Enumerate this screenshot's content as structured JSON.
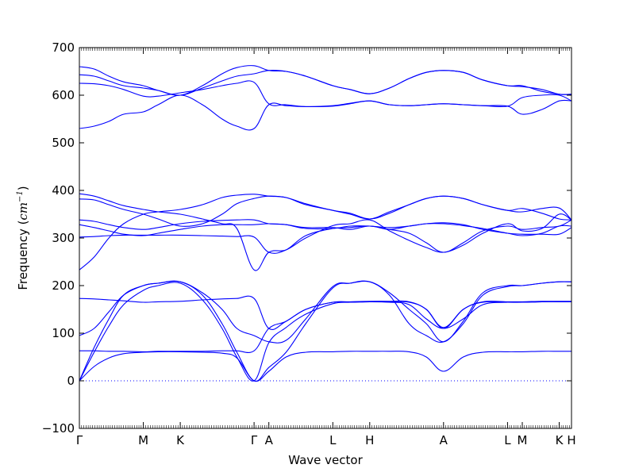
{
  "chart_data": {
    "type": "line",
    "xlabel": "Wave vector",
    "ylabel_text": "Frequency (",
    "ylabel_unit": "cm",
    "ylabel_exp": "−1",
    "ylabel_close": ")",
    "ylim": [
      -100,
      700
    ],
    "yticks": [
      -100,
      0,
      100,
      200,
      300,
      400,
      500,
      600,
      700
    ],
    "xlim": [
      0,
      10
    ],
    "kpoints": [
      {
        "label": "Γ",
        "x": 0
      },
      {
        "label": "M",
        "x": 1.3
      },
      {
        "label": "K",
        "x": 2.05
      },
      {
        "label": "Γ",
        "x": 3.55
      },
      {
        "label": "A",
        "x": 3.85
      },
      {
        "label": "L",
        "x": 5.15
      },
      {
        "label": "H",
        "x": 5.9
      },
      {
        "label": "A",
        "x": 7.4
      },
      {
        "label": "L",
        "x": 8.7
      },
      {
        "label": "M",
        "x": 9.0
      },
      {
        "label": "K",
        "x": 9.75
      },
      {
        "label": "H",
        "x": 10
      }
    ],
    "zero_line": true,
    "line_color": "#0000ff",
    "series": [
      {
        "x": [
          0,
          0.3,
          0.6,
          0.9,
          1.3,
          1.6,
          2.05,
          2.5,
          2.9,
          3.2,
          3.55,
          3.85,
          4.2,
          4.6,
          5.15,
          5.5,
          5.9,
          6.3,
          6.7,
          7.05,
          7.4,
          7.8,
          8.2,
          8.7,
          9.0,
          9.4,
          9.75,
          10
        ],
        "y": [
          0,
          30,
          48,
          57,
          60,
          61,
          61,
          60,
          58,
          48,
          0,
          20,
          50,
          60,
          61,
          62,
          62,
          62,
          61,
          50,
          20,
          50,
          60,
          61,
          61,
          62,
          62,
          62
        ]
      },
      {
        "x": [
          0,
          0.3,
          0.6,
          0.9,
          1.3,
          1.6,
          2.05,
          2.5,
          2.9,
          3.2,
          3.55,
          3.85,
          4.2,
          4.6,
          5.15,
          5.5,
          5.9,
          6.3,
          6.7,
          7.05,
          7.4,
          7.8,
          8.2,
          8.7,
          9.0,
          9.4,
          9.75,
          10
        ],
        "y": [
          0,
          70,
          130,
          180,
          200,
          205,
          208,
          180,
          120,
          60,
          0,
          28,
          60,
          120,
          195,
          205,
          208,
          180,
          120,
          95,
          82,
          120,
          180,
          198,
          200,
          205,
          208,
          208
        ]
      },
      {
        "x": [
          0,
          0.3,
          0.6,
          0.9,
          1.3,
          1.6,
          2.05,
          2.5,
          2.9,
          3.2,
          3.55,
          3.85,
          4.2,
          4.6,
          5.15,
          5.5,
          5.9,
          6.3,
          6.7,
          7.05,
          7.4,
          7.8,
          8.2,
          8.7,
          9.0,
          9.4,
          9.75,
          10
        ],
        "y": [
          0,
          60,
          115,
          160,
          190,
          200,
          205,
          170,
          110,
          50,
          0,
          80,
          112,
          140,
          162,
          165,
          166,
          165,
          160,
          130,
          110,
          130,
          160,
          165,
          165,
          166,
          166,
          166
        ]
      },
      {
        "x": [
          0,
          0.3,
          0.6,
          0.9,
          1.3,
          1.6,
          2.05,
          2.5,
          2.9,
          3.2,
          3.55,
          3.85,
          4.2,
          4.6,
          5.15,
          5.5,
          5.9,
          6.3,
          6.7,
          7.05,
          7.4,
          7.8,
          8.2,
          8.7,
          9.0,
          9.4,
          9.75,
          10
        ],
        "y": [
          63,
          63,
          62,
          62,
          61,
          62,
          62,
          62,
          63,
          63,
          63,
          110,
          125,
          150,
          165,
          165,
          166,
          166,
          165,
          150,
          110,
          150,
          165,
          165,
          165,
          166,
          166,
          166
        ]
      },
      {
        "x": [
          0,
          0.3,
          0.6,
          0.9,
          1.3,
          1.6,
          2.05,
          2.5,
          2.9,
          3.2,
          3.55,
          3.85,
          4.2,
          4.6,
          5.15,
          5.5,
          5.9,
          6.3,
          6.7,
          7.05,
          7.4,
          7.8,
          8.2,
          8.7,
          9.0,
          9.4,
          9.75,
          10
        ],
        "y": [
          95,
          110,
          145,
          180,
          200,
          205,
          208,
          185,
          150,
          110,
          95,
          82,
          85,
          130,
          198,
          205,
          208,
          185,
          150,
          120,
          82,
          125,
          185,
          200,
          200,
          205,
          208,
          208
        ]
      },
      {
        "x": [
          0,
          0.3,
          0.6,
          0.9,
          1.3,
          1.6,
          2.05,
          2.5,
          2.9,
          3.2,
          3.55,
          3.85,
          4.2,
          4.6,
          5.15,
          5.5,
          5.9,
          6.3,
          6.7,
          7.05,
          7.4,
          7.8,
          8.2,
          8.7,
          9.0,
          9.4,
          9.75,
          10
        ],
        "y": [
          173,
          172,
          170,
          168,
          165,
          166,
          167,
          170,
          172,
          173,
          173,
          110,
          125,
          150,
          165,
          166,
          167,
          167,
          166,
          150,
          112,
          150,
          166,
          166,
          166,
          167,
          167,
          167
        ]
      },
      {
        "x": [
          0,
          0.3,
          0.6,
          0.9,
          1.3,
          1.6,
          2.05,
          2.5,
          2.9,
          3.2,
          3.55,
          3.85,
          4.2,
          4.6,
          5.15,
          5.5,
          5.9,
          6.3,
          6.7,
          7.05,
          7.4,
          7.8,
          8.2,
          8.7,
          9.0,
          9.4,
          9.75,
          10
        ],
        "y": [
          233,
          260,
          300,
          330,
          350,
          355,
          360,
          370,
          385,
          390,
          392,
          388,
          385,
          370,
          358,
          350,
          340,
          355,
          370,
          383,
          388,
          383,
          370,
          358,
          355,
          362,
          363,
          338
        ]
      },
      {
        "x": [
          0,
          0.3,
          0.6,
          0.9,
          1.3,
          1.6,
          2.05,
          2.5,
          2.9,
          3.2,
          3.55,
          3.85,
          4.2,
          4.6,
          5.15,
          5.5,
          5.9,
          6.3,
          6.7,
          7.05,
          7.4,
          7.8,
          8.2,
          8.7,
          9.0,
          9.4,
          9.75,
          10
        ],
        "y": [
          393,
          388,
          378,
          368,
          360,
          355,
          350,
          340,
          330,
          320,
          233,
          270,
          275,
          300,
          326,
          330,
          338,
          315,
          295,
          280,
          270,
          285,
          310,
          330,
          315,
          320,
          350,
          338
        ]
      },
      {
        "x": [
          0,
          0.3,
          0.6,
          0.9,
          1.3,
          1.6,
          2.05,
          2.5,
          2.9,
          3.2,
          3.55,
          3.85,
          4.2,
          4.6,
          5.15,
          5.5,
          5.9,
          6.3,
          6.7,
          7.05,
          7.4,
          7.8,
          8.2,
          8.7,
          9.0,
          9.4,
          9.75,
          10
        ],
        "y": [
          382,
          380,
          370,
          360,
          350,
          340,
          325,
          330,
          350,
          372,
          383,
          388,
          385,
          372,
          358,
          352,
          340,
          352,
          370,
          383,
          388,
          383,
          370,
          358,
          362,
          352,
          340,
          338
        ]
      },
      {
        "x": [
          0,
          0.3,
          0.6,
          0.9,
          1.3,
          1.6,
          2.05,
          2.5,
          2.9,
          3.2,
          3.55,
          3.85,
          4.2,
          4.6,
          5.15,
          5.5,
          5.9,
          6.3,
          6.7,
          7.05,
          7.4,
          7.8,
          8.2,
          8.7,
          9.0,
          9.4,
          9.75,
          10
        ],
        "y": [
          338,
          335,
          328,
          322,
          318,
          322,
          330,
          335,
          337,
          338,
          338,
          330,
          328,
          320,
          320,
          325,
          325,
          322,
          325,
          330,
          330,
          326,
          320,
          310,
          305,
          310,
          325,
          325
        ]
      },
      {
        "x": [
          0,
          0.3,
          0.6,
          0.9,
          1.3,
          1.6,
          2.05,
          2.5,
          2.9,
          3.2,
          3.55,
          3.85,
          4.2,
          4.6,
          5.15,
          5.5,
          5.9,
          6.3,
          6.7,
          7.05,
          7.4,
          7.8,
          8.2,
          8.7,
          9.0,
          9.4,
          9.75,
          10
        ],
        "y": [
          328,
          322,
          315,
          308,
          305,
          310,
          318,
          325,
          328,
          328,
          328,
          330,
          328,
          322,
          322,
          318,
          325,
          318,
          325,
          330,
          332,
          328,
          318,
          310,
          308,
          308,
          308,
          322
        ]
      },
      {
        "x": [
          0,
          0.3,
          0.6,
          0.9,
          1.3,
          1.6,
          2.05,
          2.5,
          2.9,
          3.2,
          3.55,
          3.85,
          4.2,
          4.6,
          5.15,
          5.5,
          5.9,
          6.3,
          6.7,
          7.05,
          7.4,
          7.8,
          8.2,
          8.7,
          9.0,
          9.4,
          9.75,
          10
        ],
        "y": [
          302,
          303,
          305,
          306,
          306,
          306,
          306,
          305,
          304,
          303,
          302,
          270,
          275,
          305,
          320,
          322,
          325,
          318,
          310,
          290,
          270,
          290,
          315,
          325,
          318,
          322,
          325,
          338
        ]
      },
      {
        "x": [
          0,
          0.3,
          0.6,
          0.9,
          1.3,
          1.6,
          2.05,
          2.5,
          2.9,
          3.2,
          3.55,
          3.85,
          4.2,
          4.6,
          5.15,
          5.5,
          5.9,
          6.3,
          6.7,
          7.05,
          7.4,
          7.8,
          8.2,
          8.7,
          9.0,
          9.4,
          9.75,
          10
        ],
        "y": [
          530,
          535,
          545,
          560,
          565,
          580,
          600,
          580,
          550,
          535,
          530,
          580,
          578,
          576,
          577,
          582,
          588,
          580,
          578,
          580,
          582,
          580,
          578,
          577,
          560,
          570,
          588,
          588
        ]
      },
      {
        "x": [
          0,
          0.3,
          0.6,
          0.9,
          1.3,
          1.6,
          2.05,
          2.5,
          2.9,
          3.2,
          3.55,
          3.85,
          4.2,
          4.6,
          5.15,
          5.5,
          5.9,
          6.3,
          6.7,
          7.05,
          7.4,
          7.8,
          8.2,
          8.7,
          9.0,
          9.4,
          9.75,
          10
        ],
        "y": [
          625,
          624,
          620,
          612,
          598,
          598,
          605,
          612,
          620,
          625,
          627,
          582,
          580,
          576,
          578,
          583,
          588,
          580,
          578,
          580,
          582,
          580,
          578,
          577,
          595,
          600,
          600,
          588
        ]
      },
      {
        "x": [
          0,
          0.3,
          0.6,
          0.9,
          1.3,
          1.6,
          2.05,
          2.5,
          2.9,
          3.2,
          3.55,
          3.85,
          4.2,
          4.6,
          5.15,
          5.5,
          5.9,
          6.3,
          6.7,
          7.05,
          7.4,
          7.8,
          8.2,
          8.7,
          9.0,
          9.4,
          9.75,
          10
        ],
        "y": [
          643,
          640,
          630,
          620,
          615,
          610,
          600,
          615,
          630,
          640,
          645,
          652,
          650,
          640,
          620,
          612,
          603,
          615,
          635,
          648,
          652,
          648,
          632,
          620,
          618,
          612,
          602,
          602
        ]
      },
      {
        "x": [
          0,
          0.3,
          0.6,
          0.9,
          1.3,
          1.6,
          2.05,
          2.5,
          2.9,
          3.2,
          3.55,
          3.85,
          4.2,
          4.6,
          5.15,
          5.5,
          5.9,
          6.3,
          6.7,
          7.05,
          7.4,
          7.8,
          8.2,
          8.7,
          9.0,
          9.4,
          9.75,
          10
        ],
        "y": [
          660,
          655,
          640,
          628,
          620,
          610,
          600,
          620,
          645,
          658,
          662,
          652,
          650,
          640,
          620,
          612,
          603,
          615,
          635,
          648,
          652,
          648,
          632,
          620,
          620,
          608,
          602,
          602
        ]
      }
    ]
  }
}
